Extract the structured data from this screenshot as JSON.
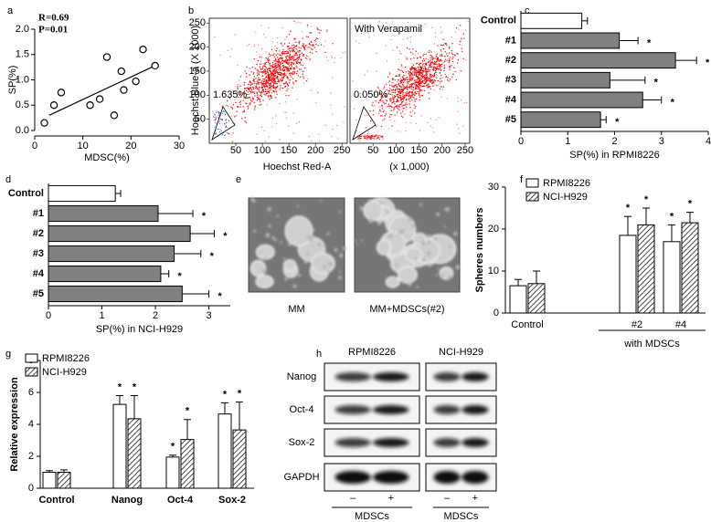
{
  "chart_data": [
    {
      "type": "scatter",
      "panel": "a",
      "annotations": [
        "R=0.69",
        "P=0.01"
      ],
      "x": [
        2,
        4,
        5.5,
        11.5,
        13.5,
        15,
        16.5,
        18,
        18.5,
        21,
        22.5,
        25
      ],
      "y": [
        0.15,
        0.5,
        0.75,
        0.5,
        0.62,
        1.45,
        0.3,
        1.17,
        0.8,
        0.97,
        1.6,
        1.28
      ],
      "fit": {
        "x": [
          3,
          25
        ],
        "y": [
          0.3,
          1.28
        ]
      },
      "xlabel": "MDSC(%)",
      "ylabel": "SP(%)",
      "color": "#000000",
      "xlim": [
        0,
        30
      ],
      "xticks": [
        0,
        10,
        20,
        30
      ],
      "ylim": [
        0,
        2
      ],
      "yticks": [
        {
          "value": 0,
          "label": "0.0"
        },
        {
          "value": 0.5,
          "label": "0.5"
        },
        {
          "value": 1,
          "label": "1.0"
        },
        {
          "value": 1.5,
          "label": "1.5"
        },
        {
          "value": 2,
          "label": "2.0"
        }
      ]
    },
    {
      "type": "flow",
      "panel": "b",
      "ylabel": "Hoechst Blue-a  (X 1000)",
      "xlabel": "Hoechst Red-A",
      "xunit": "(x 1,000)",
      "xlim": [
        0,
        260
      ],
      "xticks": [
        50,
        100,
        150,
        200,
        250
      ],
      "ylim": [
        0,
        260
      ],
      "yticks": [
        50,
        100,
        150,
        200,
        250
      ],
      "color": "#ff0000",
      "plots": [
        {
          "gate": "1.635%"
        },
        {
          "title": "With  Verapamil",
          "gate": "0.050%"
        }
      ]
    },
    {
      "type": "hbar",
      "panel": "c",
      "categories": [
        "Control",
        "#1",
        "#2",
        "#3",
        "#4",
        "#5"
      ],
      "values": [
        1.3,
        2.1,
        3.3,
        1.9,
        2.6,
        1.7
      ],
      "errors": [
        0.12,
        0.4,
        0.45,
        0.75,
        0.4,
        0.12
      ],
      "markers": [
        null,
        "*",
        "*",
        "*",
        "*",
        "*"
      ],
      "colors": [
        "#ffffff",
        "#808080",
        "#808080",
        "#808080",
        "#808080",
        "#808080"
      ],
      "xlim": [
        0,
        4
      ],
      "xticks": [
        0,
        1,
        2,
        3,
        4
      ],
      "xlabel": "SP(%) in RPMI8226"
    },
    {
      "type": "hbar",
      "panel": "d",
      "categories": [
        "Control",
        "#1",
        "#2",
        "#3",
        "#4",
        "#5"
      ],
      "values": [
        1.25,
        2.05,
        2.65,
        2.35,
        2.1,
        2.5
      ],
      "errors": [
        0.1,
        0.65,
        0.45,
        0.5,
        0.15,
        0.5
      ],
      "markers": [
        null,
        "*",
        "*",
        "*",
        "*",
        "*"
      ],
      "colors": [
        "#ffffff",
        "#808080",
        "#808080",
        "#808080",
        "#808080",
        "#808080"
      ],
      "xlim": [
        0,
        3.4
      ],
      "xticks": [
        0,
        1,
        2,
        3
      ],
      "xlabel": "SP(%) in NCI-H929"
    },
    {
      "type": "image",
      "panel": "e",
      "captions": [
        "MM",
        "MM+MDSCs(#2)"
      ]
    },
    {
      "type": "grouped_bar",
      "panel": "f",
      "categories": [
        "Control",
        "#2",
        "#4"
      ],
      "series": [
        {
          "name": "RPMI8226",
          "color": "#ffffff",
          "pattern": "none",
          "values": [
            6.5,
            18.5,
            17
          ],
          "errors": [
            1.5,
            4.5,
            4
          ],
          "markers": [
            null,
            "*",
            "*"
          ]
        },
        {
          "name": "NCI-H929",
          "color": "#ffffff",
          "pattern": "hatch",
          "values": [
            7,
            21,
            21.5
          ],
          "errors": [
            3,
            4,
            2.5
          ],
          "markers": [
            null,
            "*",
            "*"
          ]
        }
      ],
      "ylim": [
        0,
        30
      ],
      "yticks": [
        0,
        10,
        20,
        30
      ],
      "ylabel": "Spheres numbers",
      "group_label": "with MDSCs"
    },
    {
      "type": "grouped_bar",
      "panel": "g",
      "categories": [
        "Control",
        "Nanog",
        "Oct-4",
        "Sox-2"
      ],
      "series": [
        {
          "name": "RPMI8226",
          "color": "#ffffff",
          "pattern": "none",
          "values": [
            1.0,
            5.25,
            1.95,
            4.65
          ],
          "errors": [
            0.1,
            0.55,
            0.12,
            0.7
          ],
          "markers": [
            null,
            "*",
            "*",
            "*"
          ]
        },
        {
          "name": "NCI-H929",
          "color": "#ffffff",
          "pattern": "hatch",
          "values": [
            1.0,
            4.35,
            3.05,
            3.65
          ],
          "errors": [
            0.15,
            1.45,
            1.25,
            1.75
          ],
          "markers": [
            null,
            "*",
            "*",
            "*"
          ]
        }
      ],
      "ylim": [
        0,
        8
      ],
      "yticks": [
        0,
        2,
        4,
        6,
        8
      ],
      "ylabel": "Relative expression"
    },
    {
      "type": "blot",
      "panel": "h",
      "cell_lines": [
        "RPMI8226",
        "NCI-H929"
      ],
      "proteins": [
        "Nanog",
        "Oct-4",
        "Sox-2",
        "GAPDH"
      ],
      "lanes": [
        "–",
        "+"
      ],
      "treatment": "MDSCs"
    }
  ]
}
